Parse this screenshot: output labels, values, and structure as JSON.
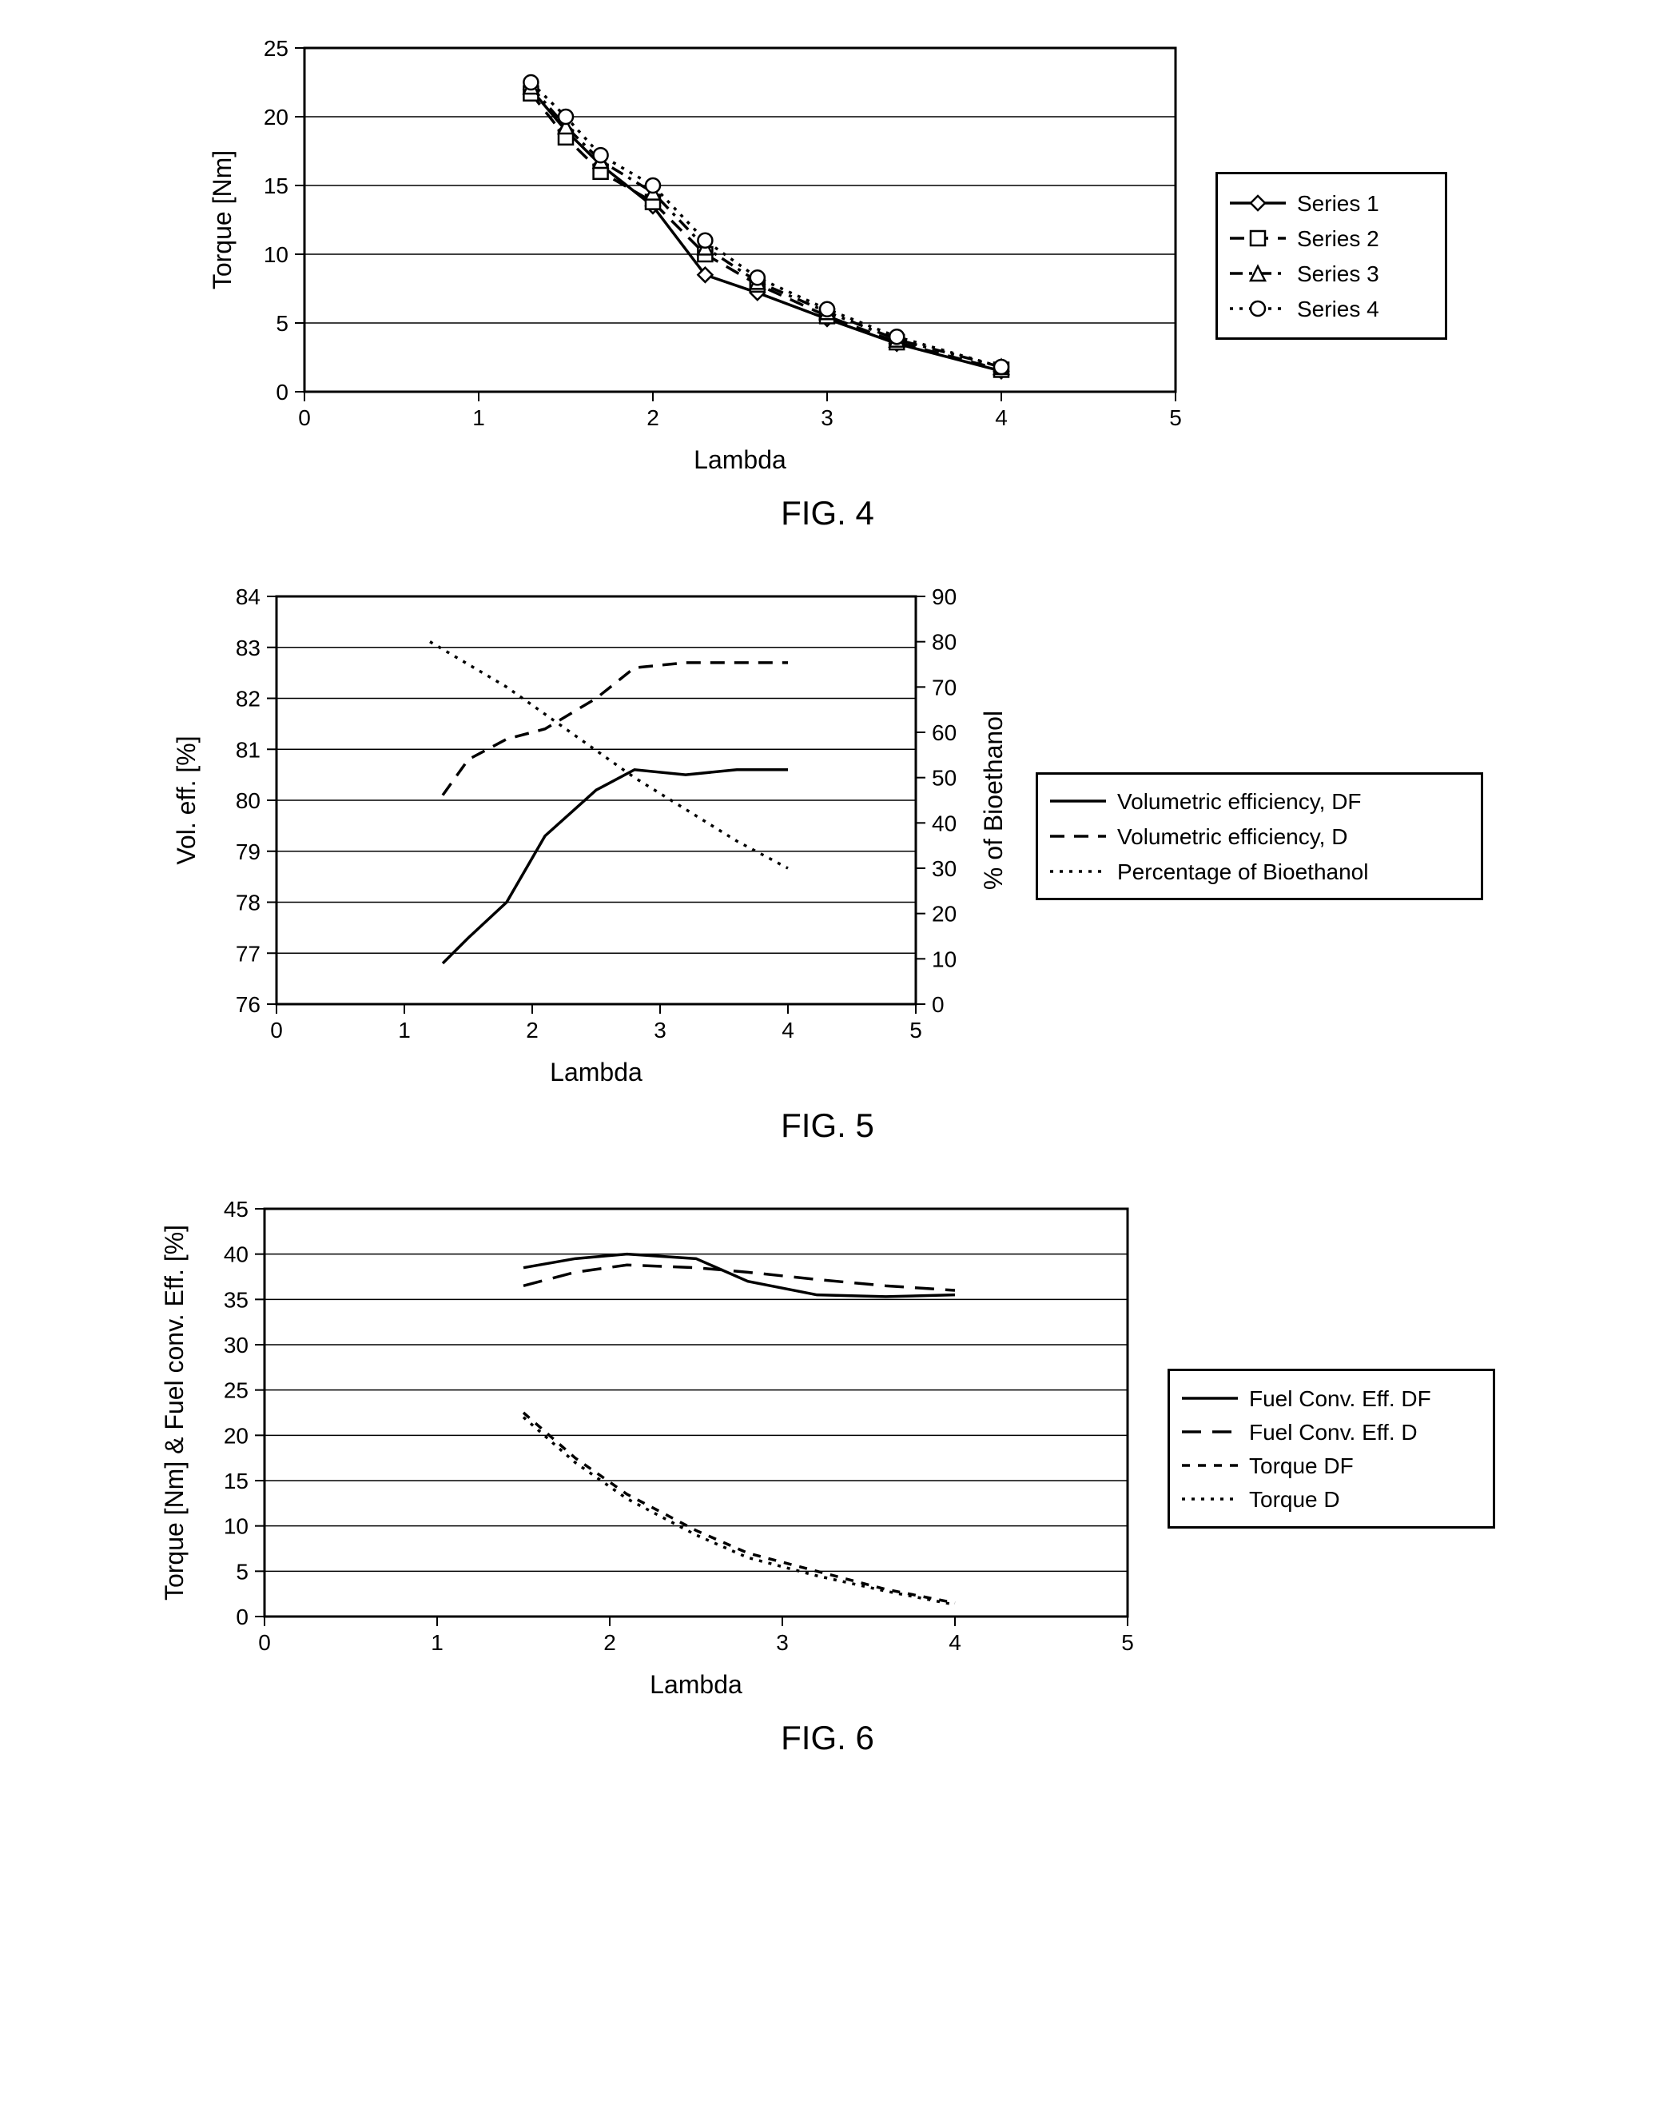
{
  "fig4": {
    "caption": "FIG. 4",
    "type": "line-with-markers",
    "xlabel": "Lambda",
    "ylabel": "Torque [Nm]",
    "xlim": [
      0,
      5
    ],
    "ylim": [
      0,
      25
    ],
    "xtick_step": 1,
    "ytick_step": 5,
    "background_color": "#ffffff",
    "grid_color": "#000000",
    "axis_color": "#000000",
    "tick_fontsize": 28,
    "label_fontsize": 32,
    "legend_fontsize": 28,
    "frame_width": 3,
    "grid_width": 1.5,
    "series": [
      {
        "label": "Series 1",
        "marker": "diamond",
        "dash": "solid",
        "color": "#000000",
        "x": [
          1.3,
          1.5,
          1.7,
          2.0,
          2.3,
          2.6,
          3.0,
          3.4,
          4.0
        ],
        "y": [
          22.0,
          19.0,
          16.5,
          13.5,
          8.5,
          7.2,
          5.3,
          3.5,
          1.5
        ]
      },
      {
        "label": "Series 2",
        "marker": "square",
        "dash": "dash",
        "color": "#000000",
        "x": [
          1.3,
          1.5,
          1.7,
          2.0,
          2.3,
          2.6,
          3.0,
          3.4,
          4.0
        ],
        "y": [
          21.7,
          18.5,
          16.0,
          13.8,
          10.0,
          7.8,
          5.5,
          3.6,
          1.6
        ]
      },
      {
        "label": "Series 3",
        "marker": "triangle",
        "dash": "dashdot",
        "color": "#000000",
        "x": [
          1.3,
          1.5,
          1.7,
          2.0,
          2.3,
          2.6,
          3.0,
          3.4,
          4.0
        ],
        "y": [
          22.2,
          19.3,
          16.8,
          14.5,
          10.5,
          8.0,
          5.8,
          3.8,
          1.8
        ]
      },
      {
        "label": "Series 4",
        "marker": "circle",
        "dash": "dot",
        "color": "#000000",
        "x": [
          1.3,
          1.5,
          1.7,
          2.0,
          2.3,
          2.6,
          3.0,
          3.4,
          4.0
        ],
        "y": [
          22.5,
          20.0,
          17.2,
          15.0,
          11.0,
          8.3,
          6.0,
          4.0,
          1.8
        ]
      }
    ],
    "legend_items": [
      "Series 1",
      "Series 2",
      "Series 3",
      "Series 4"
    ]
  },
  "fig5": {
    "caption": "FIG. 5",
    "type": "line-dual-axis",
    "xlabel": "Lambda",
    "ylabel_left": "Vol. eff. [%]",
    "ylabel_right": "% of Bioethanol",
    "xlim": [
      0,
      5
    ],
    "ylim_left": [
      76,
      84
    ],
    "ylim_right": [
      0,
      90
    ],
    "xtick_step": 1,
    "ytick_step_left": 1,
    "ytick_step_right": 10,
    "background_color": "#ffffff",
    "grid_color": "#000000",
    "axis_color": "#000000",
    "tick_fontsize": 28,
    "label_fontsize": 32,
    "legend_fontsize": 28,
    "frame_width": 3,
    "grid_width": 1.5,
    "series": [
      {
        "label": "Volumetric efficiency, DF",
        "axis": "left",
        "dash": "solid",
        "color": "#000000",
        "x": [
          1.3,
          1.5,
          1.8,
          2.1,
          2.5,
          2.8,
          3.2,
          3.6,
          4.0
        ],
        "y": [
          76.8,
          77.3,
          78.0,
          79.3,
          80.2,
          80.6,
          80.5,
          80.6,
          80.6
        ]
      },
      {
        "label": "Volumetric efficiency, D",
        "axis": "left",
        "dash": "dash",
        "color": "#000000",
        "x": [
          1.3,
          1.5,
          1.8,
          2.1,
          2.5,
          2.8,
          3.2,
          3.6,
          4.0
        ],
        "y": [
          80.1,
          80.8,
          81.2,
          81.4,
          82.0,
          82.6,
          82.7,
          82.7,
          82.7
        ]
      },
      {
        "label": "Percentage of Bioethanol",
        "axis": "right",
        "dash": "dot",
        "color": "#000000",
        "x": [
          1.2,
          1.5,
          1.8,
          2.1,
          2.5,
          2.8,
          3.2,
          3.6,
          4.0
        ],
        "y": [
          80,
          75,
          70,
          64,
          56,
          50,
          43,
          36,
          30
        ]
      }
    ],
    "legend_items": [
      "Volumetric efficiency, DF",
      "Volumetric efficiency, D",
      "Percentage of Bioethanol"
    ]
  },
  "fig6": {
    "caption": "FIG. 6",
    "type": "line",
    "xlabel": "Lambda",
    "ylabel": "Torque [Nm] & Fuel conv. Eff. [%]",
    "xlim": [
      0,
      5
    ],
    "ylim": [
      0,
      45
    ],
    "xtick_step": 1,
    "ytick_step": 5,
    "background_color": "#ffffff",
    "grid_color": "#000000",
    "axis_color": "#000000",
    "tick_fontsize": 28,
    "label_fontsize": 32,
    "legend_fontsize": 28,
    "frame_width": 3,
    "grid_width": 1.5,
    "series": [
      {
        "label": "Fuel Conv. Eff. DF",
        "dash": "solid",
        "color": "#000000",
        "x": [
          1.5,
          1.8,
          2.1,
          2.5,
          2.8,
          3.2,
          3.6,
          4.0
        ],
        "y": [
          38.5,
          39.5,
          40.0,
          39.5,
          37.0,
          35.5,
          35.3,
          35.5
        ]
      },
      {
        "label": "Fuel Conv. Eff. D",
        "dash": "longdash",
        "color": "#000000",
        "x": [
          1.5,
          1.8,
          2.1,
          2.5,
          2.8,
          3.2,
          3.6,
          4.0
        ],
        "y": [
          36.5,
          38.0,
          38.8,
          38.5,
          38.0,
          37.2,
          36.5,
          36.0
        ]
      },
      {
        "label": "Torque DF",
        "dash": "shortdash",
        "color": "#000000",
        "x": [
          1.5,
          1.8,
          2.1,
          2.5,
          2.8,
          3.2,
          3.6,
          4.0
        ],
        "y": [
          22.5,
          17.5,
          13.5,
          9.5,
          7.0,
          5.0,
          3.0,
          1.5
        ]
      },
      {
        "label": "Torque D",
        "dash": "dot",
        "color": "#000000",
        "x": [
          1.5,
          1.8,
          2.1,
          2.5,
          2.8,
          3.2,
          3.6,
          4.0
        ],
        "y": [
          22.0,
          17.0,
          13.0,
          9.0,
          6.5,
          4.5,
          2.8,
          1.3
        ]
      }
    ],
    "legend_items": [
      "Fuel Conv. Eff. DF",
      "Fuel Conv. Eff. D",
      "Torque DF",
      "Torque D"
    ]
  }
}
